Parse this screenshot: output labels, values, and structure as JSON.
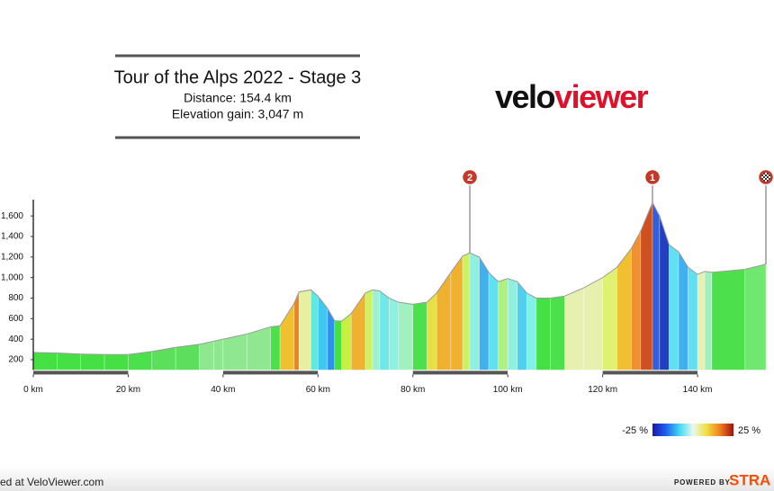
{
  "chart_data": {
    "type": "area",
    "title": "Tour of the Alps 2022 - Stage 3",
    "subtitle": [
      "Distance: 154.4 km",
      "Elevation gain: 3,047 m"
    ],
    "x": [
      0,
      5,
      10,
      15,
      20,
      25,
      30,
      35,
      38,
      40,
      45,
      50,
      52,
      55,
      56,
      58.5,
      60,
      62,
      63.5,
      65,
      67,
      70,
      71.5,
      73,
      75,
      77,
      80,
      83,
      85,
      88,
      90.5,
      92,
      94,
      96,
      98,
      100,
      102,
      104,
      106,
      109,
      112,
      116,
      120,
      123,
      126,
      128,
      130.5,
      132,
      134,
      136,
      138,
      140,
      141.5,
      143,
      150,
      154.4
    ],
    "values": [
      270,
      265,
      255,
      250,
      250,
      280,
      320,
      350,
      380,
      400,
      450,
      520,
      530,
      750,
      860,
      880,
      820,
      700,
      580,
      575,
      650,
      850,
      880,
      870,
      800,
      760,
      740,
      760,
      850,
      1050,
      1210,
      1240,
      1200,
      1050,
      960,
      990,
      960,
      850,
      800,
      800,
      820,
      900,
      1000,
      1100,
      1280,
      1450,
      1730,
      1600,
      1320,
      1250,
      1100,
      1030,
      1060,
      1050,
      1080,
      1130
    ],
    "segment_colors": [
      "#44e044",
      "#44e044",
      "#44e044",
      "#44e044",
      "#4ce04c",
      "#5ce05c",
      "#5ce05c",
      "#8fe88f",
      "#8fe88f",
      "#8fe88f",
      "#8fe88f",
      "#4ce04c",
      "#f0c030",
      "#f08020",
      "#e8f0a0",
      "#60e8e0",
      "#40c8f0",
      "#3090f0",
      "#44e044",
      "#c8f040",
      "#f0b030",
      "#d0f060",
      "#a0f0d0",
      "#70e8e8",
      "#90f0e0",
      "#a0f0c0",
      "#4ce04c",
      "#e8e040",
      "#f0b030",
      "#f0b030",
      "#d0f060",
      "#90f0e0",
      "#40b0f0",
      "#60e0f0",
      "#b0f080",
      "#90f0e0",
      "#50d0f0",
      "#80f0e8",
      "#44e044",
      "#4ce04c",
      "#e8f0b0",
      "#e8f0b0",
      "#e0f070",
      "#f0c030",
      "#f09030",
      "#d05020",
      "#3060e0",
      "#2040c0",
      "#60e0f0",
      "#40b0f0",
      "#60e0f0",
      "#e8f0b0",
      "#a0f0c0",
      "#4ce04c",
      "#70e870"
    ],
    "xlim": [
      0,
      154.4
    ],
    "ylim": [
      100,
      1750
    ],
    "xticks": [
      {
        "value": 0,
        "label": "0 km"
      },
      {
        "value": 20,
        "label": "20 km"
      },
      {
        "value": 40,
        "label": "40 km"
      },
      {
        "value": 60,
        "label": "60 km"
      },
      {
        "value": 80,
        "label": "80 km"
      },
      {
        "value": 100,
        "label": "100 km"
      },
      {
        "value": 120,
        "label": "120 km"
      },
      {
        "value": 140,
        "label": "140 km"
      }
    ],
    "yticks": [
      200,
      400,
      600,
      800,
      {
        "value": 1000,
        "label": "1,000"
      },
      {
        "value": 1200,
        "label": "1,200"
      },
      {
        "value": 1400,
        "label": "1,400"
      },
      {
        "value": 1600,
        "label": "1,600"
      }
    ],
    "climbs": [
      {
        "label": "2",
        "x": 92
      },
      {
        "label": "1",
        "x": 130.5
      }
    ],
    "climb_color": "#c0392b",
    "legend": {
      "min_label": "-25 %",
      "max_label": "25 %",
      "colors": [
        "#1a1aa8",
        "#2060f0",
        "#40d8f0",
        "#e8f8f0",
        "#f0e040",
        "#f08020",
        "#a01010"
      ]
    }
  },
  "branding": {
    "logo_dark": "velo",
    "logo_red": "viewer",
    "credit": "ed at VeloViewer.com",
    "powered_by": "POWERED BY",
    "strava": "STRA"
  }
}
